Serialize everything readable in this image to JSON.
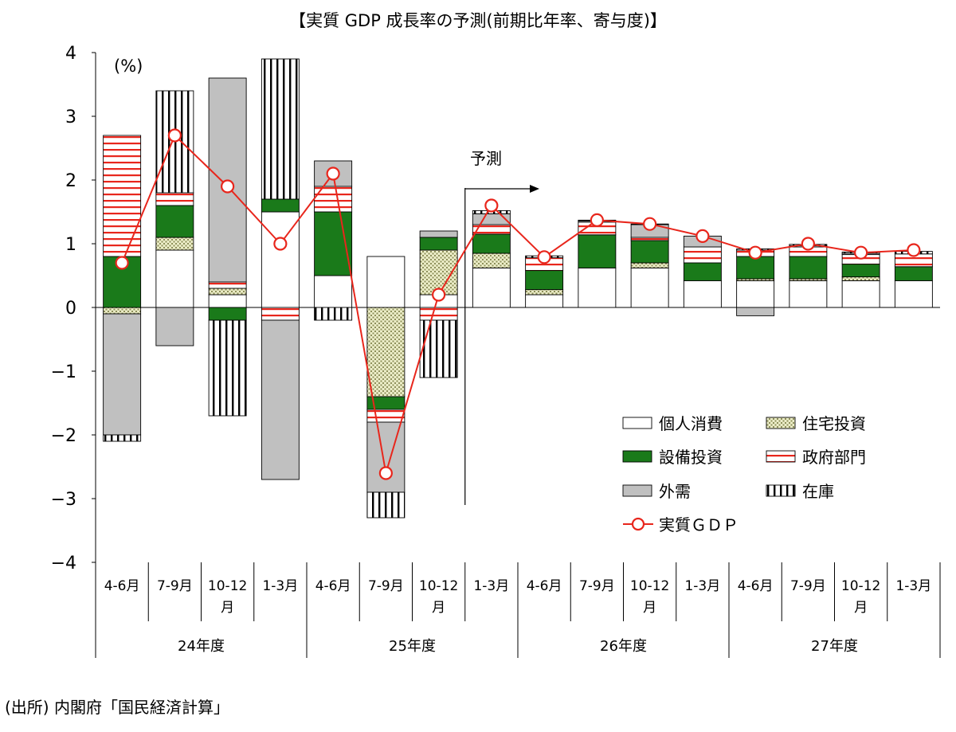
{
  "chart_data": {
    "type": "bar",
    "title": "【実質 GDP 成長率の予測(前期比年率、寄与度)】",
    "ylabel": "(%)",
    "ylim": [
      -4,
      4
    ],
    "yticks": [
      "4",
      "3",
      "2",
      "1",
      "0",
      "−1",
      "−2",
      "−3",
      "−4"
    ],
    "categories": [
      "4-6月",
      "7-9月",
      "10-12月",
      "1-3月",
      "4-6月",
      "7-9月",
      "10-12月",
      "1-3月",
      "4-6月",
      "7-9月",
      "10-12月",
      "1-3月",
      "4-6月",
      "7-9月",
      "10-12月",
      "1-3月"
    ],
    "fiscal_years": [
      "24年度",
      "25年度",
      "26年度",
      "27年度"
    ],
    "forecast_label": "予測",
    "series": [
      {
        "name": "個人消費",
        "pattern": "white",
        "values": [
          0,
          0.9,
          0.2,
          1.5,
          0.5,
          0.8,
          0.2,
          0.62,
          0.2,
          0.62,
          0.62,
          0.42,
          0.42,
          0.42,
          0.42,
          0.42
        ]
      },
      {
        "name": "住宅投資",
        "pattern": "dots",
        "values": [
          -0.1,
          0.2,
          0.1,
          0,
          0,
          -1.4,
          0.7,
          0.23,
          0.08,
          0,
          0.08,
          0,
          0.03,
          0.03,
          0.06,
          0
        ]
      },
      {
        "name": "設備投資",
        "pattern": "green",
        "values": [
          0.8,
          0.5,
          -0.2,
          0.2,
          1.0,
          -0.2,
          0.2,
          0.3,
          0.3,
          0.52,
          0.35,
          0.28,
          0.35,
          0.35,
          0.2,
          0.22
        ]
      },
      {
        "name": "政府部門",
        "pattern": "redlines",
        "values": [
          1.9,
          0.2,
          0.1,
          -0.2,
          0.4,
          -0.2,
          -0.2,
          0.15,
          0.2,
          0.2,
          0.05,
          0.25,
          0.1,
          0.15,
          0.15,
          0.2
        ]
      },
      {
        "name": "外需",
        "pattern": "gray",
        "values": [
          -1.9,
          -0.6,
          3.2,
          -2.5,
          0.4,
          -1.1,
          0.1,
          0.17,
          0,
          0.02,
          0.2,
          0.17,
          -0.13,
          0.02,
          0.02,
          0
        ]
      },
      {
        "name": "在庫",
        "pattern": "vlines",
        "values": [
          -0.1,
          1.6,
          -1.5,
          2.2,
          -0.2,
          -0.4,
          -0.9,
          0.05,
          0.03,
          0.01,
          0.01,
          0,
          0.02,
          0.02,
          0.02,
          0.04
        ]
      }
    ],
    "line": {
      "name": "実質ＧＤＰ",
      "values": [
        0.7,
        2.7,
        1.9,
        1.0,
        2.1,
        -2.6,
        0.2,
        1.6,
        0.79,
        1.37,
        1.31,
        1.12,
        0.86,
        1.0,
        0.86,
        0.9
      ]
    },
    "colors": {
      "green": "#1a7a1a",
      "red": "#e8261c",
      "gray": "#c0c0c0",
      "dots": "#b8ba8a"
    }
  },
  "source": "(出所) 内閣府「国民経済計算」"
}
